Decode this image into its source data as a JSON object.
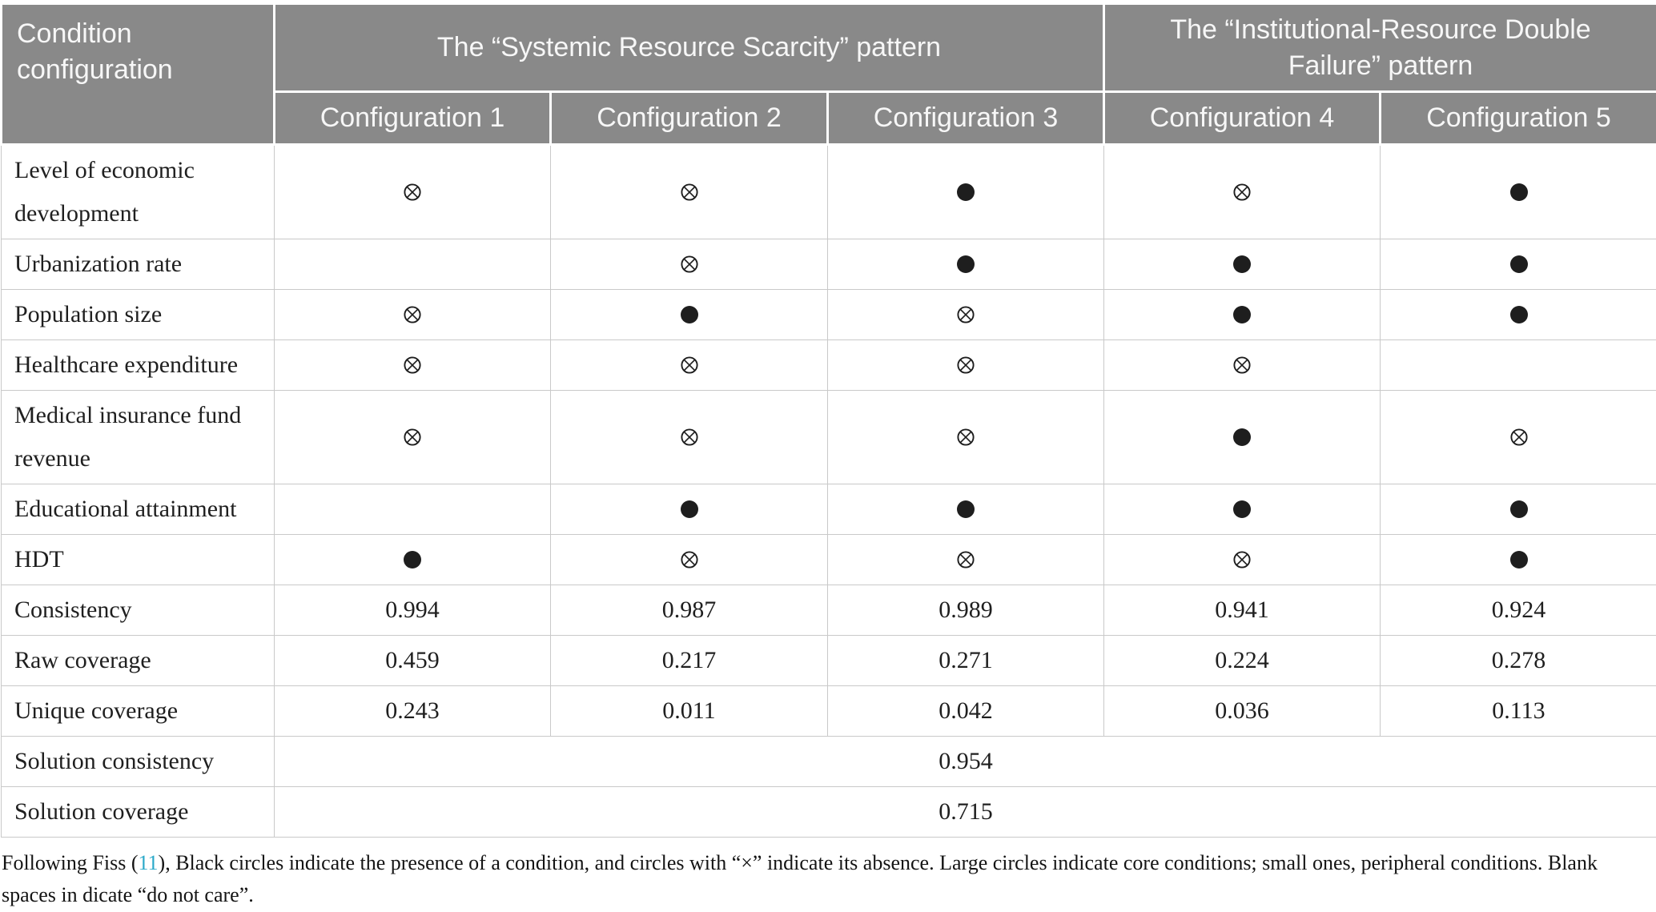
{
  "colors": {
    "header_background": "#898989",
    "header_text": "#f7f7f7",
    "body_border": "#c9c9c9",
    "symbol_color": "#1e1e1e",
    "citation_link": "#2BA9C9"
  },
  "header": {
    "condition_label": "Condition configuration",
    "pattern_groups": [
      {
        "label": "The “Systemic Resource Scarcity” pattern",
        "span": 3
      },
      {
        "label": "The “Institutional-Resource Double Failure” pattern",
        "span": 2
      }
    ],
    "config_columns": [
      "Configuration 1",
      "Configuration 2",
      "Configuration 3",
      "Configuration 4",
      "Configuration 5"
    ]
  },
  "symbol_legend": {
    "present": "filled-black-circle (condition present)",
    "absent": "circle-with-x (condition absent)",
    "blank": "do not care"
  },
  "rows": [
    {
      "label": "Level of economic development",
      "type": "symbols",
      "tall": true,
      "values": [
        "absent",
        "absent",
        "present",
        "absent",
        "present"
      ]
    },
    {
      "label": "Urbanization rate",
      "type": "symbols",
      "tall": false,
      "values": [
        "",
        "absent",
        "present",
        "present",
        "present"
      ]
    },
    {
      "label": "Population size",
      "type": "symbols",
      "tall": false,
      "values": [
        "absent",
        "present",
        "absent",
        "present",
        "present"
      ]
    },
    {
      "label": "Healthcare expenditure",
      "type": "symbols",
      "tall": false,
      "values": [
        "absent",
        "absent",
        "absent",
        "absent",
        ""
      ]
    },
    {
      "label": "Medical insurance fund revenue",
      "type": "symbols",
      "tall": true,
      "values": [
        "absent",
        "absent",
        "absent",
        "present",
        "absent"
      ]
    },
    {
      "label": "Educational attainment",
      "type": "symbols",
      "tall": false,
      "values": [
        "",
        "present",
        "present",
        "present",
        "present"
      ]
    },
    {
      "label": "HDT",
      "type": "symbols",
      "tall": false,
      "values": [
        "present",
        "absent",
        "absent",
        "absent",
        "present"
      ]
    },
    {
      "label": "Consistency",
      "type": "numbers",
      "tall": false,
      "values": [
        "0.994",
        "0.987",
        "0.989",
        "0.941",
        "0.924"
      ]
    },
    {
      "label": "Raw coverage",
      "type": "numbers",
      "tall": false,
      "values": [
        "0.459",
        "0.217",
        "0.271",
        "0.224",
        "0.278"
      ]
    },
    {
      "label": "Unique coverage",
      "type": "numbers",
      "tall": false,
      "values": [
        "0.243",
        "0.011",
        "0.042",
        "0.036",
        "0.113"
      ]
    },
    {
      "label": "Solution consistency",
      "type": "merged",
      "tall": false,
      "value": "0.954"
    },
    {
      "label": "Solution coverage",
      "type": "merged",
      "tall": false,
      "value": "0.715"
    }
  ],
  "footnote": {
    "prefix": "Following Fiss (",
    "link_text": "11",
    "suffix": "), Black circles indicate the presence of a condition, and circles with “×” indicate its absence. Large circles indicate core conditions; small ones, peripheral conditions. Blank spaces in dicate “do not care”."
  }
}
